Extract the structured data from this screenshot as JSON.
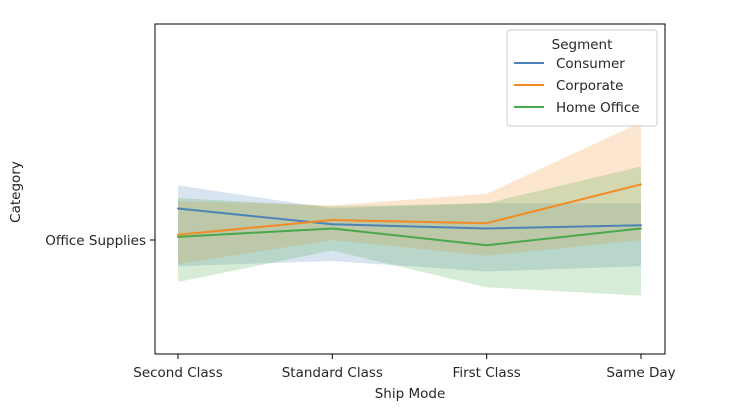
{
  "chart_data": {
    "type": "line",
    "xlabel": "Ship Mode",
    "ylabel": "Category",
    "categories": [
      "Second Class",
      "Standard Class",
      "First Class",
      "Same Day"
    ],
    "y_tick_label": "Office Supplies",
    "grid": false,
    "legend": {
      "title": "Segment",
      "placement": "top-right"
    },
    "series": [
      {
        "name": "Consumer",
        "color": "#4c82b8",
        "values": [
          0.3,
          0.15,
          0.11,
          0.14
        ],
        "ci_low": [
          -0.25,
          -0.2,
          -0.3,
          -0.25
        ],
        "ci_high": [
          0.52,
          0.3,
          0.35,
          0.35
        ]
      },
      {
        "name": "Corporate",
        "color": "#f28b24",
        "values": [
          0.05,
          0.19,
          0.16,
          0.53
        ],
        "ci_low": [
          -0.23,
          0.0,
          -0.15,
          0.0
        ],
        "ci_high": [
          0.37,
          0.33,
          0.44,
          1.12
        ]
      },
      {
        "name": "Home Office",
        "color": "#4aa84a",
        "values": [
          0.03,
          0.11,
          -0.05,
          0.11
        ],
        "ci_low": [
          -0.4,
          -0.1,
          -0.45,
          -0.53
        ],
        "ci_high": [
          0.4,
          0.32,
          0.35,
          0.7
        ]
      }
    ]
  }
}
